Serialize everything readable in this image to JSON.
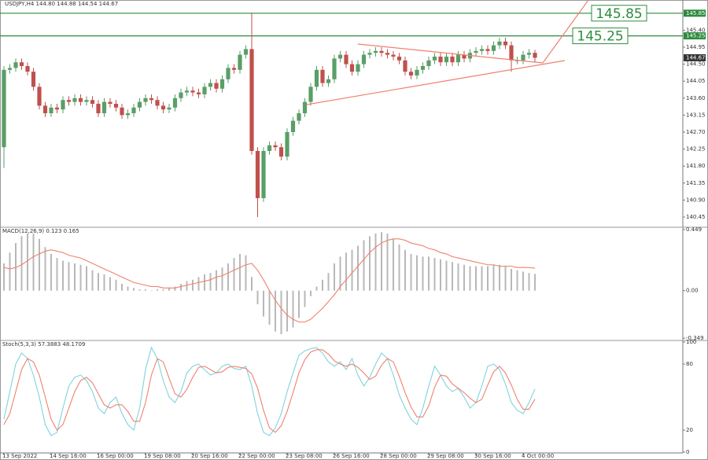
{
  "chart_data": [
    {
      "type": "candlestick",
      "title": "USDJPY,H4 144.80 144.88 144.54 144.67",
      "up_color": "#5a9e68",
      "down_color": "#c0504d",
      "ylim": [
        140.2,
        146.2
      ],
      "yticks": [
        {
          "value": 145.4,
          "label": "145.40"
        },
        144.95,
        {
          "value": 144.5,
          "label": "144.50"
        },
        144.05,
        {
          "value": 143.6,
          "label": "143.60"
        },
        143.15,
        {
          "value": 142.7,
          "label": "142.70"
        },
        142.25,
        {
          "value": 141.8,
          "label": "141.80"
        },
        141.35,
        {
          "value": 140.9,
          "label": "140.90"
        },
        140.45
      ],
      "levels": [
        145.85,
        145.25
      ],
      "level_color": "#2e8b3e",
      "categories": [
        "13 Sep 2022",
        null,
        null,
        null,
        null,
        null,
        null,
        null,
        "14 Sep 16:00",
        null,
        null,
        null,
        null,
        null,
        null,
        null,
        "16 Sep 00:00",
        null,
        null,
        null,
        null,
        null,
        null,
        null,
        "19 Sep 08:00",
        null,
        null,
        null,
        null,
        null,
        null,
        null,
        "20 Sep 16:00",
        null,
        null,
        null,
        null,
        null,
        null,
        null,
        "22 Sep 00:00",
        null,
        null,
        null,
        null,
        null,
        null,
        null,
        "23 Sep 08:00",
        null,
        null,
        null,
        null,
        null,
        null,
        null,
        "26 Sep 16:00",
        null,
        null,
        null,
        null,
        null,
        null,
        null,
        "28 Sep 00:00",
        null,
        null,
        null,
        null,
        null,
        null,
        null,
        "29 Sep 08:00",
        null,
        null,
        null,
        null,
        null,
        null,
        null,
        "30 Sep 16:00",
        null,
        null,
        null,
        null,
        null,
        null,
        null,
        "4 Oct 00:00",
        null,
        null
      ],
      "open": [
        142.3,
        144.35,
        144.4,
        144.55,
        144.45,
        144.3,
        143.9,
        143.4,
        143.2,
        143.35,
        143.3,
        143.55,
        143.5,
        143.6,
        143.5,
        143.55,
        143.45,
        143.2,
        143.5,
        143.45,
        143.35,
        143.15,
        143.2,
        143.35,
        143.5,
        143.6,
        143.55,
        143.4,
        143.3,
        143.35,
        143.6,
        143.75,
        143.8,
        143.75,
        143.7,
        143.9,
        144.0,
        143.85,
        144.1,
        144.4,
        144.35,
        144.75,
        144.9,
        142.2,
        140.95,
        142.2,
        142.35,
        142.3,
        142.05,
        142.7,
        143.0,
        143.2,
        143.5,
        143.9,
        144.35,
        144.0,
        144.1,
        144.65,
        144.75,
        144.5,
        144.3,
        144.5,
        144.75,
        144.8,
        144.85,
        144.8,
        144.75,
        144.7,
        144.6,
        144.3,
        144.2,
        144.35,
        144.45,
        144.6,
        144.7,
        144.55,
        144.7,
        144.55,
        144.75,
        144.65,
        144.8,
        144.85,
        144.9,
        144.85,
        145.0,
        145.1,
        145.0,
        144.6,
        144.6,
        144.75,
        144.8
      ],
      "high": [
        144.45,
        144.5,
        144.65,
        144.65,
        144.55,
        144.4,
        144.0,
        143.5,
        143.45,
        143.45,
        143.65,
        143.65,
        143.7,
        143.7,
        143.65,
        143.65,
        143.55,
        143.6,
        143.6,
        143.55,
        143.45,
        143.3,
        143.45,
        143.6,
        143.7,
        143.7,
        143.65,
        143.5,
        143.45,
        143.7,
        143.85,
        143.9,
        143.9,
        143.85,
        144.0,
        144.1,
        144.1,
        144.2,
        144.5,
        144.5,
        144.85,
        145.0,
        145.85,
        142.3,
        142.3,
        142.45,
        142.45,
        142.4,
        142.8,
        143.1,
        143.3,
        143.6,
        144.0,
        144.45,
        144.45,
        144.2,
        144.75,
        144.85,
        144.85,
        144.6,
        144.6,
        144.85,
        144.9,
        144.95,
        144.95,
        144.9,
        144.85,
        144.8,
        144.7,
        144.4,
        144.45,
        144.55,
        144.7,
        144.8,
        144.8,
        144.8,
        144.8,
        144.85,
        144.85,
        144.9,
        144.95,
        145.0,
        145.0,
        145.1,
        145.2,
        145.2,
        145.1,
        144.7,
        144.85,
        144.9,
        144.88
      ],
      "low": [
        141.75,
        144.25,
        144.3,
        144.35,
        144.2,
        143.8,
        143.3,
        143.1,
        143.1,
        143.2,
        143.2,
        143.4,
        143.4,
        143.4,
        143.4,
        143.35,
        143.1,
        143.1,
        143.35,
        143.25,
        143.05,
        143.05,
        143.1,
        143.25,
        143.4,
        143.45,
        143.3,
        143.2,
        143.2,
        143.25,
        143.5,
        143.65,
        143.65,
        143.6,
        143.6,
        143.8,
        143.75,
        143.75,
        144.0,
        144.25,
        144.25,
        144.65,
        142.1,
        140.45,
        140.85,
        142.1,
        142.2,
        141.95,
        141.95,
        142.6,
        142.9,
        143.1,
        143.4,
        143.8,
        143.9,
        143.9,
        144.0,
        144.55,
        144.4,
        144.2,
        144.2,
        144.4,
        144.65,
        144.7,
        144.7,
        144.65,
        144.6,
        144.5,
        144.2,
        144.1,
        144.1,
        144.25,
        144.35,
        144.5,
        144.45,
        144.45,
        144.45,
        144.45,
        144.55,
        144.55,
        144.7,
        144.75,
        144.75,
        144.75,
        144.9,
        144.9,
        144.3,
        144.5,
        144.5,
        144.65,
        144.54
      ],
      "close": [
        144.35,
        144.4,
        144.55,
        144.45,
        144.3,
        143.9,
        143.4,
        143.2,
        143.35,
        143.3,
        143.55,
        143.5,
        143.6,
        143.5,
        143.55,
        143.45,
        143.2,
        143.5,
        143.45,
        143.35,
        143.15,
        143.2,
        143.35,
        143.5,
        143.6,
        143.55,
        143.4,
        143.3,
        143.35,
        143.6,
        143.75,
        143.8,
        143.75,
        143.7,
        143.9,
        144.0,
        143.85,
        144.1,
        144.4,
        144.35,
        144.75,
        144.9,
        142.2,
        140.95,
        142.2,
        142.35,
        142.3,
        142.05,
        142.7,
        143.0,
        143.2,
        143.5,
        143.9,
        144.35,
        144.0,
        144.1,
        144.65,
        144.75,
        144.5,
        144.3,
        144.5,
        144.75,
        144.8,
        144.85,
        144.8,
        144.75,
        144.7,
        144.6,
        144.3,
        144.2,
        144.35,
        144.45,
        144.6,
        144.7,
        144.55,
        144.7,
        144.55,
        144.75,
        144.65,
        144.8,
        144.85,
        144.9,
        144.85,
        145.0,
        145.1,
        145.0,
        144.6,
        144.6,
        144.75,
        144.8,
        144.67
      ]
    },
    {
      "type": "bar",
      "title": "MACD(12,26,9) 0.123 0.165",
      "ylim": [
        -0.36,
        0.46
      ],
      "yticks": [
        0.449,
        {
          "value": 0,
          "label": "0.00"
        },
        -0.349
      ],
      "series": [
        {
          "color": "#b8b8b8",
          "values": [
            0.2,
            0.28,
            0.35,
            0.4,
            0.42,
            0.42,
            0.38,
            0.32,
            0.27,
            0.24,
            0.22,
            0.21,
            0.2,
            0.19,
            0.18,
            0.15,
            0.13,
            0.12,
            0.1,
            0.08,
            0.05,
            0.03,
            0.02,
            0.01,
            0.01,
            0.0,
            0.01,
            0.01,
            0.02,
            0.03,
            0.05,
            0.07,
            0.08,
            0.1,
            0.12,
            0.13,
            0.15,
            0.17,
            0.2,
            0.24,
            0.27,
            0.26,
            0.1,
            -0.1,
            -0.19,
            -0.25,
            -0.3,
            -0.32,
            -0.3,
            -0.27,
            -0.2,
            -0.12,
            -0.04,
            0.03,
            0.08,
            0.13,
            0.2,
            0.25,
            0.28,
            0.3,
            0.33,
            0.37,
            0.4,
            0.42,
            0.43,
            0.42,
            0.38,
            0.34,
            0.3,
            0.27,
            0.26,
            0.25,
            0.25,
            0.24,
            0.23,
            0.22,
            0.21,
            0.2,
            0.19,
            0.18,
            0.18,
            0.18,
            0.18,
            0.19,
            0.19,
            0.18,
            0.16,
            0.15,
            0.14,
            0.13,
            0.123
          ]
        },
        {
          "type": "line",
          "color": "#f08070",
          "values": [
            0.17,
            0.16,
            0.17,
            0.19,
            0.22,
            0.25,
            0.27,
            0.29,
            0.3,
            0.29,
            0.28,
            0.26,
            0.25,
            0.24,
            0.22,
            0.2,
            0.18,
            0.16,
            0.14,
            0.12,
            0.1,
            0.08,
            0.06,
            0.05,
            0.04,
            0.03,
            0.03,
            0.02,
            0.02,
            0.02,
            0.03,
            0.04,
            0.05,
            0.06,
            0.07,
            0.08,
            0.1,
            0.11,
            0.13,
            0.15,
            0.17,
            0.19,
            0.2,
            0.15,
            0.08,
            0.0,
            -0.07,
            -0.13,
            -0.18,
            -0.21,
            -0.23,
            -0.23,
            -0.21,
            -0.17,
            -0.13,
            -0.08,
            -0.03,
            0.03,
            0.08,
            0.13,
            0.18,
            0.23,
            0.28,
            0.32,
            0.35,
            0.37,
            0.38,
            0.38,
            0.37,
            0.35,
            0.34,
            0.33,
            0.31,
            0.3,
            0.28,
            0.27,
            0.25,
            0.24,
            0.23,
            0.22,
            0.21,
            0.2,
            0.19,
            0.19,
            0.18,
            0.18,
            0.18,
            0.17,
            0.17,
            0.17,
            0.165
          ]
        }
      ]
    },
    {
      "type": "line",
      "title": "Stoch(5,3,3) 57.3883 48.1709",
      "ylim": [
        0,
        100
      ],
      "yticks": [
        100,
        80,
        20,
        0
      ],
      "series": [
        {
          "color": "#7fd3dc",
          "values": [
            30,
            55,
            80,
            90,
            85,
            70,
            50,
            25,
            15,
            18,
            40,
            60,
            68,
            70,
            65,
            55,
            40,
            35,
            45,
            50,
            35,
            25,
            20,
            40,
            75,
            95,
            85,
            65,
            50,
            45,
            55,
            72,
            78,
            80,
            75,
            70,
            72,
            78,
            80,
            76,
            75,
            78,
            60,
            35,
            18,
            15,
            22,
            35,
            55,
            72,
            88,
            92,
            94,
            95,
            90,
            82,
            78,
            82,
            75,
            85,
            70,
            60,
            68,
            80,
            90,
            85,
            70,
            52,
            40,
            30,
            25,
            40,
            60,
            78,
            70,
            60,
            55,
            58,
            50,
            40,
            45,
            60,
            78,
            80,
            75,
            62,
            45,
            38,
            35,
            45,
            57.3883
          ]
        },
        {
          "color": "#f08070",
          "values": [
            25,
            35,
            55,
            75,
            85,
            82,
            70,
            50,
            30,
            20,
            25,
            40,
            55,
            65,
            68,
            63,
            53,
            43,
            40,
            43,
            43,
            37,
            28,
            28,
            45,
            70,
            85,
            82,
            67,
            53,
            50,
            57,
            68,
            77,
            78,
            75,
            72,
            73,
            77,
            78,
            77,
            76,
            71,
            58,
            38,
            22,
            18,
            24,
            37,
            54,
            72,
            84,
            91,
            93,
            93,
            89,
            83,
            80,
            78,
            80,
            77,
            72,
            66,
            69,
            79,
            85,
            82,
            69,
            54,
            41,
            32,
            32,
            42,
            59,
            70,
            69,
            62,
            58,
            54,
            49,
            45,
            48,
            61,
            73,
            78,
            72,
            61,
            48,
            39,
            39,
            48.1709
          ]
        }
      ]
    }
  ]
}
